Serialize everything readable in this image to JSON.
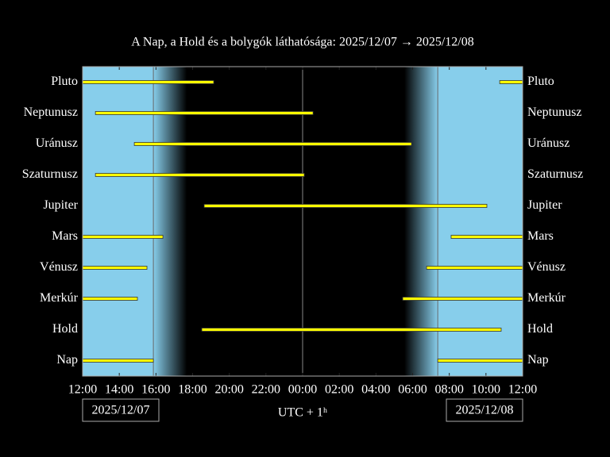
{
  "chart_data": {
    "type": "timeline",
    "title": "A Nap, a Hold és a bolygók láthatósága: 2025/12/07 → 2025/12/08",
    "x_label": "UTC + 1ʰ",
    "date_labels": [
      "2025/12/07",
      "2025/12/08"
    ],
    "xlim": [
      0,
      24
    ],
    "xticks": [
      {
        "value": 0,
        "label": "12:00"
      },
      {
        "value": 2,
        "label": "14:00"
      },
      {
        "value": 4,
        "label": "16:00"
      },
      {
        "value": 6,
        "label": "18:00"
      },
      {
        "value": 8,
        "label": "20:00"
      },
      {
        "value": 10,
        "label": "22:00"
      },
      {
        "value": 12,
        "label": "00:00"
      },
      {
        "value": 14,
        "label": "02:00"
      },
      {
        "value": 16,
        "label": "04:00"
      },
      {
        "value": 18,
        "label": "06:00"
      },
      {
        "value": 20,
        "label": "08:00"
      },
      {
        "value": 22,
        "label": "10:00"
      },
      {
        "value": 24,
        "label": "12:00"
      }
    ],
    "bar_color": "#ffff00",
    "sky_color": "#87ceeb",
    "rows": [
      {
        "name": "Pluto",
        "segments": [
          [
            0,
            7.15
          ],
          [
            22.75,
            24
          ]
        ]
      },
      {
        "name": "Neptunusz",
        "segments": [
          [
            0.7,
            12.57
          ]
        ]
      },
      {
        "name": "Uránusz",
        "segments": [
          [
            2.82,
            17.94
          ]
        ]
      },
      {
        "name": "Szaturnusz",
        "segments": [
          [
            0.7,
            12.09
          ]
        ]
      },
      {
        "name": "Jupiter",
        "segments": [
          [
            6.63,
            22.05
          ]
        ]
      },
      {
        "name": "Mars",
        "segments": [
          [
            0,
            4.38
          ],
          [
            20.1,
            24
          ]
        ]
      },
      {
        "name": "Vénusz",
        "segments": [
          [
            0,
            3.51
          ],
          [
            18.76,
            24
          ]
        ]
      },
      {
        "name": "Merkúr",
        "segments": [
          [
            0,
            2.99
          ],
          [
            17.46,
            24
          ]
        ]
      },
      {
        "name": "Hold",
        "segments": [
          [
            6.5,
            22.83
          ]
        ]
      },
      {
        "name": "Nap",
        "segments": [
          [
            0,
            3.86
          ],
          [
            19.37,
            24
          ]
        ]
      }
    ]
  }
}
